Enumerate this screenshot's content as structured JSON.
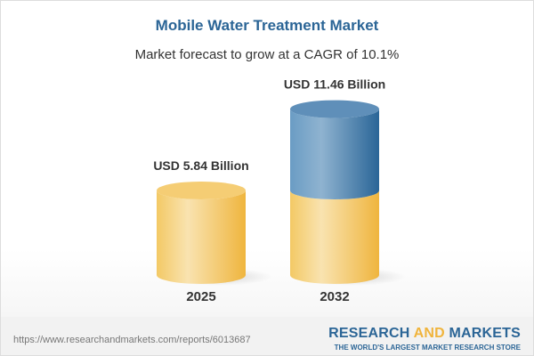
{
  "header": {
    "title": "Mobile Water Treatment Market",
    "subtitle": "Market forecast to grow at a CAGR of 10.1%"
  },
  "chart_data": {
    "type": "bar",
    "style": "3d-cylinder",
    "categories": [
      "2025",
      "2032"
    ],
    "values": [
      5.84,
      11.46
    ],
    "data_labels": [
      "USD 5.84 Billion",
      "USD 11.46 Billion"
    ],
    "title": "Mobile Water Treatment Market",
    "subtitle": "Market forecast to grow at a CAGR of 10.1%",
    "unit": "USD Billion",
    "grid": false,
    "colors": {
      "base": "#f3c55e",
      "growth": "#3d78a8"
    }
  },
  "footer": {
    "url": "https://www.researchandmarkets.com/reports/6013687",
    "brand_part1": "RESEARCH ",
    "brand_part2": "AND",
    "brand_part3": " MARKETS",
    "tagline": "THE WORLD'S LARGEST MARKET RESEARCH STORE"
  }
}
